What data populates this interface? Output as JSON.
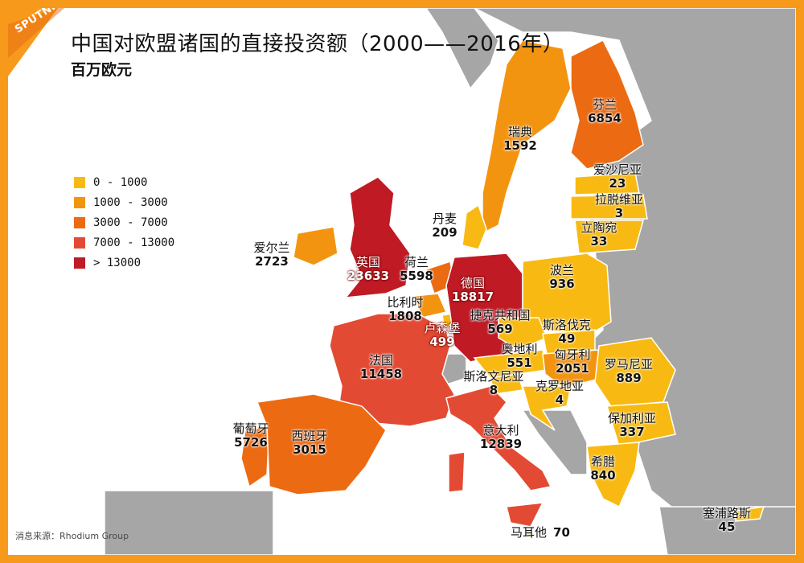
{
  "header": {
    "title": "中国对欧盟诸国的直接投资额（2000——2016年）",
    "subtitle": "百万欧元"
  },
  "logo": {
    "text": "SPUTNIK"
  },
  "source": "消息来源：Rhodium Group",
  "colors": {
    "frame": "#f79a1b",
    "sea": "#ffffff",
    "non_eu": "#a6a6a6",
    "border": "#ffffff"
  },
  "legend": [
    {
      "label": "0 - 1000",
      "color": "#f8ba12"
    },
    {
      "label": "1000 - 3000",
      "color": "#f39411"
    },
    {
      "label": "3000 - 7000",
      "color": "#ec6a12"
    },
    {
      "label": "7000 - 13000",
      "color": "#e34a33"
    },
    {
      "label": "> 13000",
      "color": "#c01a24"
    }
  ],
  "countries": [
    {
      "name": "芬兰",
      "value": "6854"
    },
    {
      "name": "瑞典",
      "value": "1592"
    },
    {
      "name": "爱沙尼亚",
      "value": "23"
    },
    {
      "name": "拉脱维亚",
      "value": "3"
    },
    {
      "name": "立陶宛",
      "value": "33"
    },
    {
      "name": "丹麦",
      "value": "209"
    },
    {
      "name": "爱尔兰",
      "value": "2723"
    },
    {
      "name": "英国",
      "value": "23633"
    },
    {
      "name": "荷兰",
      "value": "5598"
    },
    {
      "name": "比利时",
      "value": "1808"
    },
    {
      "name": "德国",
      "value": "18817"
    },
    {
      "name": "卢森堡",
      "value": "499"
    },
    {
      "name": "波兰",
      "value": "936"
    },
    {
      "name": "捷克共和国",
      "value": "569"
    },
    {
      "name": "斯洛伐克",
      "value": "49"
    },
    {
      "name": "奥地利",
      "value": "551"
    },
    {
      "name": "匈牙利",
      "value": "2051"
    },
    {
      "name": "罗马尼亚",
      "value": "889"
    },
    {
      "name": "斯洛文尼亚",
      "value": "8"
    },
    {
      "name": "克罗地亚",
      "value": "4"
    },
    {
      "name": "法国",
      "value": "11458"
    },
    {
      "name": "保加利亚",
      "value": "337"
    },
    {
      "name": "葡萄牙",
      "value": "5726"
    },
    {
      "name": "西班牙",
      "value": "3015"
    },
    {
      "name": "意大利",
      "value": "12839"
    },
    {
      "name": "希腊",
      "value": "840"
    },
    {
      "name": "塞浦路斯",
      "value": "45"
    },
    {
      "name": "马耳他",
      "value": "70"
    }
  ]
}
